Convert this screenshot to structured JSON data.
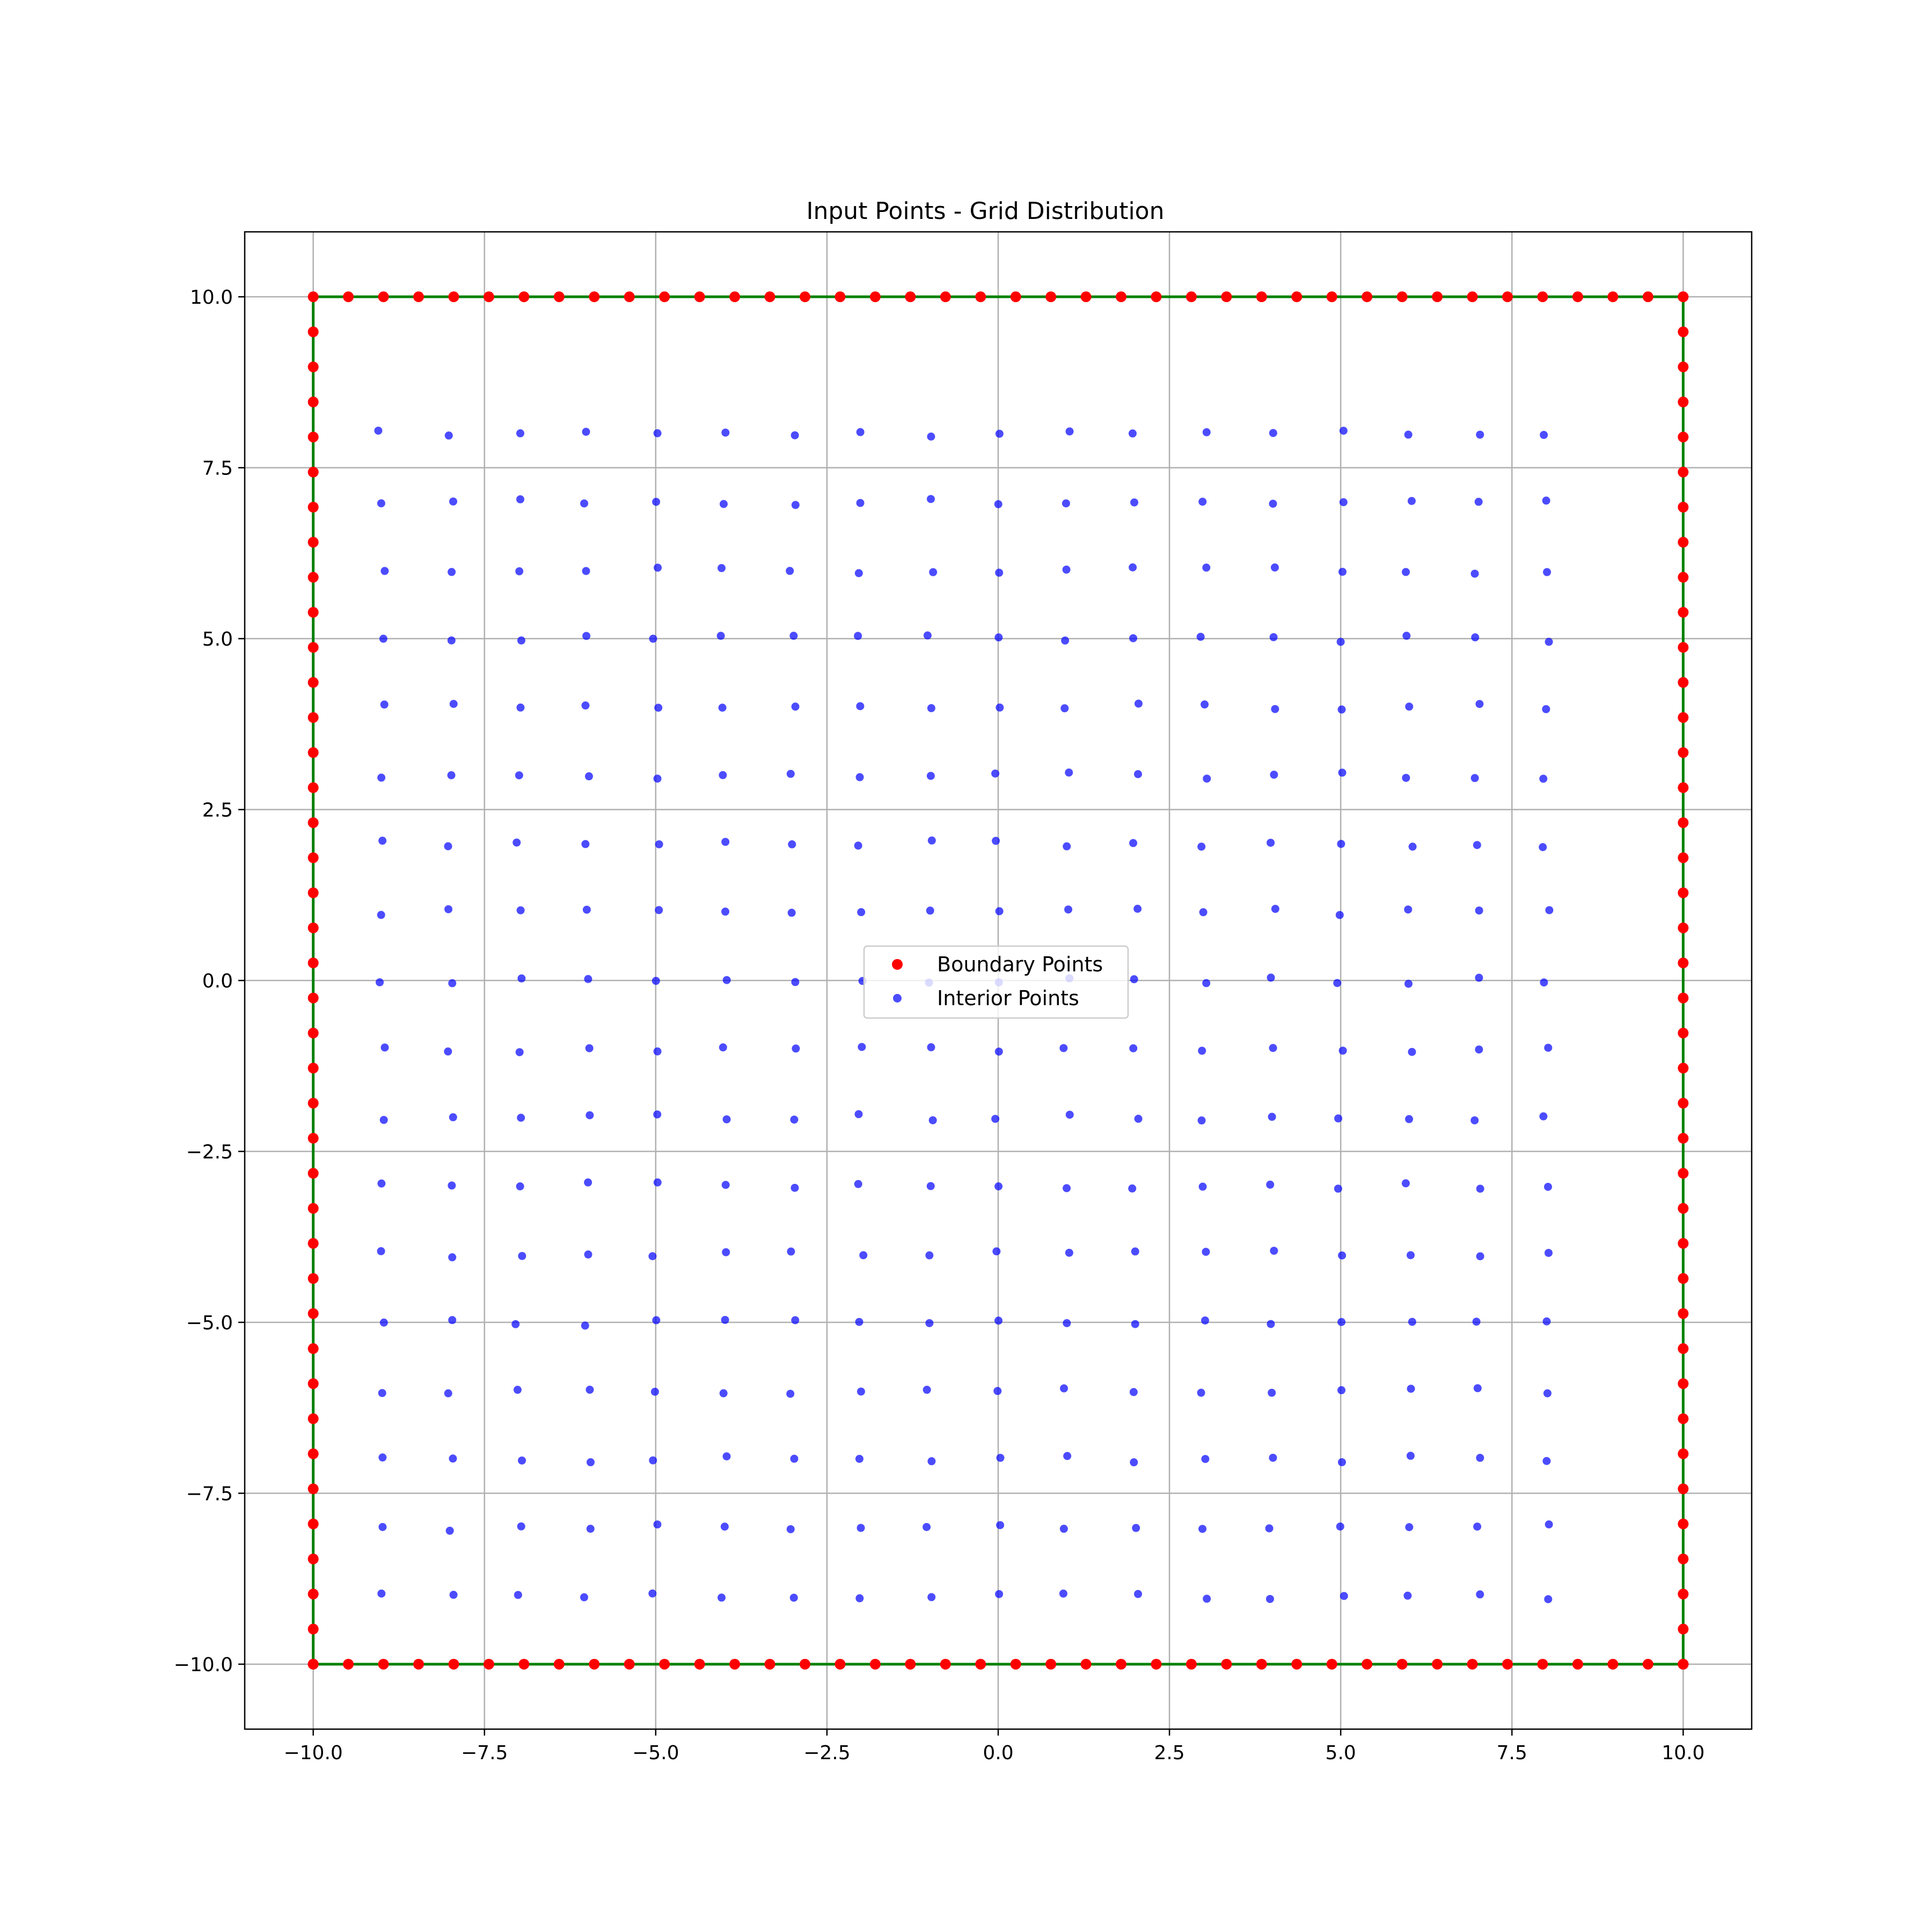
{
  "chart_data": {
    "type": "scatter",
    "title": "Input Points - Grid Distribution",
    "xlabel": "",
    "ylabel": "",
    "xlim": [
      -11,
      11
    ],
    "ylim": [
      -10.95,
      10.95
    ],
    "xticks": [
      -10.0,
      -7.5,
      -5.0,
      -2.5,
      0.0,
      2.5,
      5.0,
      7.5,
      10.0
    ],
    "yticks": [
      -10.0,
      -7.5,
      -5.0,
      -2.5,
      0.0,
      2.5,
      5.0,
      7.5,
      10.0
    ],
    "xtick_labels": [
      "−10.0",
      "−7.5",
      "−5.0",
      "−2.5",
      "0.0",
      "2.5",
      "5.0",
      "7.5",
      "10.0"
    ],
    "ytick_labels": [
      "−10.0",
      "−7.5",
      "−5.0",
      "−2.5",
      "0.0",
      "2.5",
      "5.0",
      "7.5",
      "10.0"
    ],
    "grid": true,
    "legend_position": "center",
    "boundary_polygon": {
      "color": "#008000",
      "points": [
        [
          -10,
          10
        ],
        [
          10,
          10
        ],
        [
          10,
          -10
        ],
        [
          -10,
          -10
        ]
      ]
    },
    "series": [
      {
        "name": "Boundary Points",
        "color": "#ff0000",
        "marker": "circle",
        "points_description": "evenly spaced along square boundary",
        "spacing": 0.5128,
        "bounds": [
          -10,
          10
        ]
      },
      {
        "name": "Interior Points",
        "color": "#0000ff",
        "marker": "circle",
        "x": [
          -9,
          -8,
          -7,
          -6,
          -5,
          -4,
          -3,
          -2,
          -1,
          0,
          1,
          2,
          3,
          4,
          5,
          6,
          7,
          8
        ],
        "y": [
          8,
          7,
          6,
          5,
          4,
          3,
          2,
          1,
          0,
          -1,
          -2,
          -3,
          -4,
          -5,
          -6,
          -7,
          -8,
          -9
        ],
        "jitter": 0.05
      }
    ]
  }
}
